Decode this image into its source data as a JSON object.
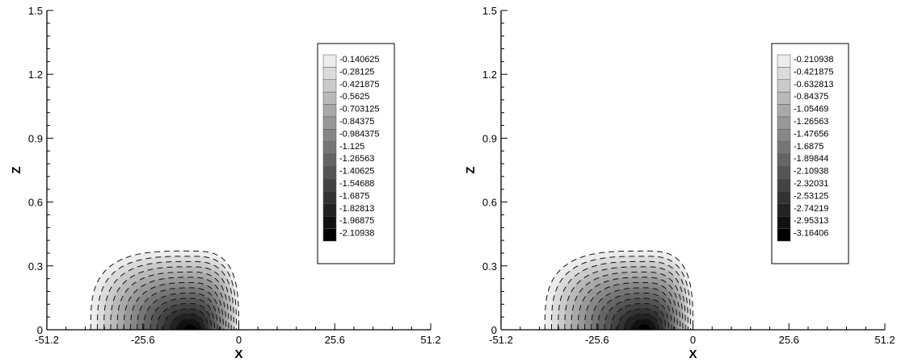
{
  "chart_data": [
    {
      "type": "contour",
      "xlabel": "X",
      "ylabel": "Z",
      "xlim": [
        -51.2,
        51.2
      ],
      "ylim": [
        0,
        1.5
      ],
      "x_ticks": [
        "-51.2",
        "-25.6",
        "0",
        "25.6",
        "51.2"
      ],
      "y_ticks": [
        "0",
        "0.3",
        "0.6",
        "0.9",
        "1.2",
        "1.5"
      ],
      "grid": false,
      "legend_position": "right",
      "line_style": "dashed",
      "colormap": "grayscale",
      "contour_extent": {
        "x_min": -39.5,
        "x_max": 0,
        "z_max": 0.37
      },
      "min_location": {
        "x": -13,
        "z": 0
      },
      "levels": [
        "-0.140625",
        "-0.28125",
        "-0.421875",
        "-0.5625",
        "-0.703125",
        "-0.84375",
        "-0.984375",
        "-1.125",
        "-1.26563",
        "-1.40625",
        "-1.54688",
        "-1.6875",
        "-1.82813",
        "-1.96875",
        "-2.10938"
      ]
    },
    {
      "type": "contour",
      "xlabel": "X",
      "ylabel": "Z",
      "xlim": [
        -51.2,
        51.2
      ],
      "ylim": [
        0,
        1.5
      ],
      "x_ticks": [
        "-51.2",
        "-25.6",
        "0",
        "25.6",
        "51.2"
      ],
      "y_ticks": [
        "0",
        "0.3",
        "0.6",
        "0.9",
        "1.2",
        "1.5"
      ],
      "grid": false,
      "legend_position": "right",
      "line_style": "dashed",
      "colormap": "grayscale",
      "contour_extent": {
        "x_min": -39.5,
        "x_max": 0,
        "z_max": 0.37
      },
      "min_location": {
        "x": -13,
        "z": 0
      },
      "levels": [
        "-0.210938",
        "-0.421875",
        "-0.632813",
        "-0.84375",
        "-1.05469",
        "-1.26563",
        "-1.47656",
        "-1.6875",
        "-1.89844",
        "-2.10938",
        "-2.32031",
        "-2.53125",
        "-2.74219",
        "-2.95313",
        "-3.16406"
      ]
    }
  ]
}
